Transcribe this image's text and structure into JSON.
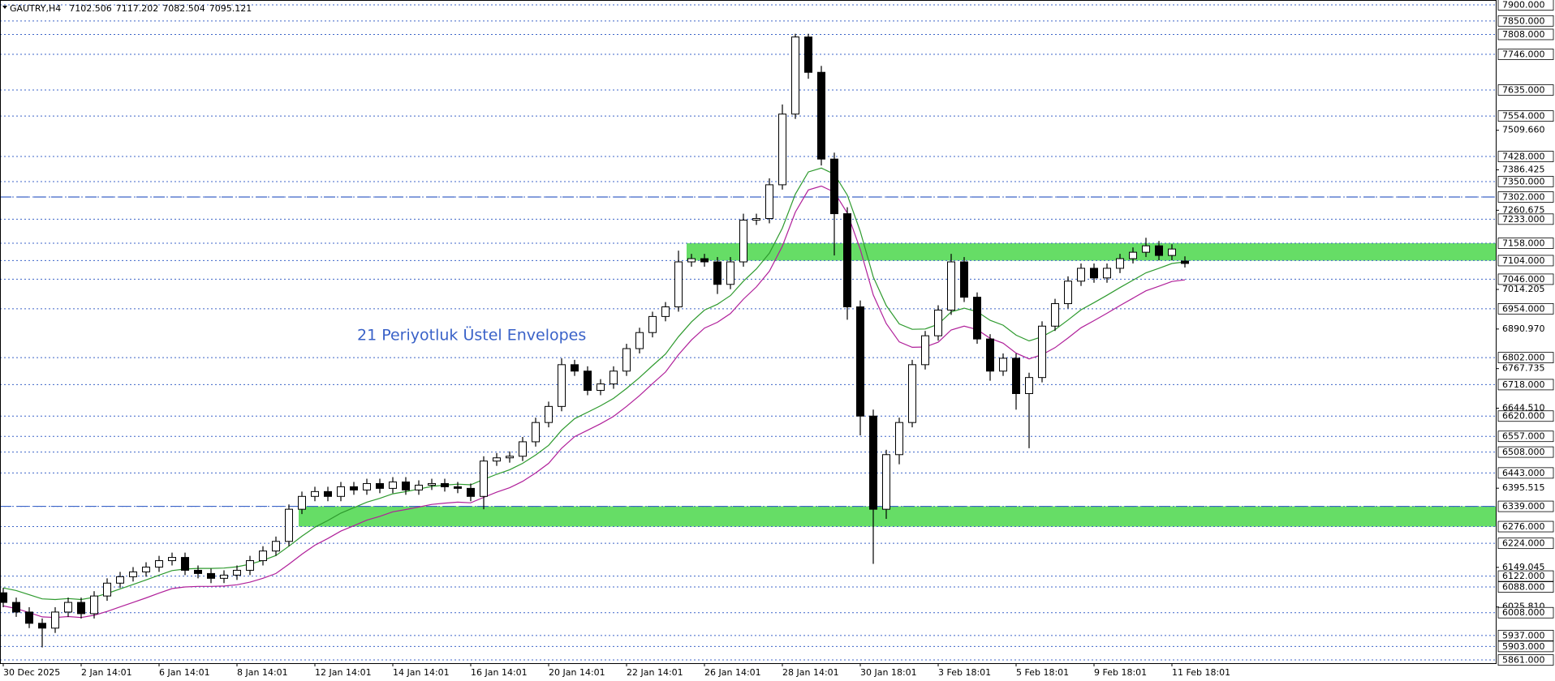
{
  "chart_data": {
    "type": "candlestick",
    "symbol": "GAUTRY,H4",
    "annotation": "21 Periyotluk Üstel Envelopes",
    "categories": [
      "30 Dec 2025",
      null,
      null,
      null,
      null,
      null,
      "2 Jan 14:01",
      null,
      null,
      null,
      null,
      null,
      "6 Jan 14:01",
      null,
      null,
      null,
      null,
      null,
      "8 Jan 14:01",
      null,
      null,
      null,
      null,
      null,
      "12 Jan 14:01",
      null,
      null,
      null,
      null,
      null,
      "14 Jan 14:01",
      null,
      null,
      null,
      null,
      null,
      "16 Jan 14:01",
      null,
      null,
      null,
      null,
      null,
      "20 Jan 14:01",
      null,
      null,
      null,
      null,
      null,
      "22 Jan 14:01",
      null,
      null,
      null,
      null,
      null,
      "26 Jan 14:01",
      null,
      null,
      null,
      null,
      null,
      "28 Jan 14:01",
      null,
      null,
      null,
      null,
      null,
      "30 Jan 18:01",
      null,
      null,
      null,
      null,
      null,
      "3 Feb 18:01",
      null,
      null,
      null,
      null,
      null,
      "5 Feb 18:01",
      null,
      null,
      null,
      null,
      null,
      "9 Feb 18:01",
      null,
      null,
      null,
      null,
      null,
      "11 Feb 18:01",
      null
    ],
    "open": [
      6070,
      6040,
      6010,
      5975,
      5960,
      6010,
      6040,
      6005,
      6060,
      6100,
      6120,
      6135,
      6150,
      6170,
      6180,
      6140,
      6130,
      6115,
      6125,
      6140,
      6170,
      6200,
      6230,
      6330,
      6370,
      6385,
      6370,
      6400,
      6390,
      6410,
      6395,
      6415,
      6390,
      6405,
      6410,
      6400,
      6395,
      6370,
      6480,
      6490,
      6495,
      6540,
      6600,
      6650,
      6780,
      6760,
      6700,
      6720,
      6760,
      6830,
      6880,
      6930,
      6960,
      7100,
      7110,
      7100,
      7030,
      7100,
      7230,
      7235,
      7340,
      7560,
      7800,
      7690,
      7420,
      7250,
      6960,
      6620,
      6330,
      6500,
      6600,
      6780,
      6870,
      6950,
      7100,
      6990,
      6860,
      6760,
      6800,
      6690,
      6740,
      6900,
      6970,
      7040,
      7080,
      7050,
      7080,
      7110,
      7130,
      7150,
      7120,
      7102.506
    ],
    "high": [
      6085,
      6055,
      6025,
      5990,
      6025,
      6055,
      6055,
      6075,
      6115,
      6135,
      6150,
      6165,
      6185,
      6195,
      6195,
      6155,
      6145,
      6140,
      6155,
      6185,
      6215,
      6245,
      6345,
      6385,
      6400,
      6400,
      6415,
      6415,
      6425,
      6425,
      6430,
      6430,
      6420,
      6425,
      6425,
      6415,
      6410,
      6495,
      6505,
      6510,
      6555,
      6615,
      6665,
      6800,
      6795,
      6775,
      6735,
      6775,
      6845,
      6895,
      6945,
      6975,
      7135,
      7125,
      7125,
      7115,
      7115,
      7250,
      7250,
      7360,
      7590,
      7810,
      7810,
      7710,
      7440,
      7270,
      6980,
      6640,
      6515,
      6615,
      6795,
      6885,
      6965,
      7125,
      7115,
      7005,
      6875,
      6815,
      6815,
      6755,
      6915,
      6985,
      7055,
      7095,
      7095,
      7095,
      7125,
      7145,
      7175,
      7165,
      7155,
      7117.202
    ],
    "low": [
      6025,
      5995,
      5960,
      5900,
      5945,
      5995,
      5990,
      5990,
      6045,
      6085,
      6105,
      6120,
      6135,
      6155,
      6125,
      6115,
      6100,
      6100,
      6110,
      6125,
      6155,
      6185,
      6215,
      6315,
      6355,
      6355,
      6355,
      6375,
      6375,
      6380,
      6380,
      6375,
      6375,
      6390,
      6385,
      6380,
      6355,
      6330,
      6465,
      6475,
      6480,
      6525,
      6585,
      6635,
      6745,
      6685,
      6685,
      6705,
      6745,
      6815,
      6865,
      6915,
      6945,
      7085,
      7085,
      7000,
      7015,
      7085,
      7215,
      7220,
      7325,
      7545,
      7670,
      7400,
      7120,
      6920,
      6560,
      6160,
      6300,
      6470,
      6585,
      6765,
      6855,
      6935,
      6975,
      6845,
      6730,
      6745,
      6640,
      6520,
      6725,
      6885,
      6955,
      7025,
      7035,
      7035,
      7065,
      7095,
      7115,
      7105,
      7105,
      7082.504
    ],
    "close": [
      6040,
      6010,
      5975,
      5960,
      6010,
      6040,
      6005,
      6060,
      6100,
      6120,
      6135,
      6150,
      6170,
      6180,
      6140,
      6130,
      6115,
      6125,
      6140,
      6170,
      6200,
      6230,
      6330,
      6370,
      6385,
      6370,
      6400,
      6390,
      6410,
      6395,
      6415,
      6390,
      6405,
      6410,
      6400,
      6395,
      6370,
      6480,
      6490,
      6495,
      6540,
      6600,
      6650,
      6780,
      6760,
      6700,
      6720,
      6760,
      6830,
      6880,
      6930,
      6960,
      7100,
      7110,
      7100,
      7030,
      7100,
      7230,
      7235,
      7340,
      7560,
      7800,
      7690,
      7420,
      7250,
      6960,
      6620,
      6330,
      6500,
      6600,
      6780,
      6870,
      6950,
      7100,
      6990,
      6860,
      6760,
      6800,
      6690,
      6740,
      6900,
      6970,
      7040,
      7080,
      7050,
      7080,
      7110,
      7130,
      7150,
      7120,
      7140,
      7095.121
    ],
    "up_color": "#ffffff",
    "down_color": "#000000",
    "series": [
      {
        "color": "#2e9a2e",
        "values": [
          6085,
          6077,
          6064,
          6051,
          6049,
          6052,
          6049,
          6056,
          6068,
          6082,
          6096,
          6110,
          6125,
          6139,
          6144,
          6146,
          6146,
          6147,
          6151,
          6159,
          6171,
          6186,
          6215,
          6246,
          6274,
          6295,
          6318,
          6335,
          6352,
          6364,
          6378,
          6385,
          6393,
          6401,
          6405,
          6408,
          6406,
          6423,
          6439,
          6453,
          6473,
          6499,
          6529,
          6576,
          6612,
          6632,
          6652,
          6675,
          6706,
          6740,
          6777,
          6813,
          6867,
          6913,
          6950,
          6968,
          6995,
          7040,
          7078,
          7127,
          7205,
          7311,
          7380,
          7392,
          7373,
          7308,
          7195,
          7053,
          6964,
          6907,
          6890,
          6891,
          6906,
          6944,
          6956,
          6945,
          6918,
          6903,
          6872,
          6854,
          6867,
          6889,
          6919,
          6951,
          6973,
          6996,
          7020,
          7043,
          7066,
          7080,
          7095,
          7100
        ]
      },
      {
        "color": "#b0209a",
        "values": [
          6029,
          6021,
          6008,
          5995,
          5993,
          5996,
          5993,
          6000,
          6012,
          6026,
          6040,
          6054,
          6069,
          6083,
          6088,
          6090,
          6090,
          6091,
          6095,
          6103,
          6115,
          6130,
          6159,
          6190,
          6218,
          6239,
          6262,
          6279,
          6296,
          6308,
          6322,
          6329,
          6337,
          6345,
          6349,
          6352,
          6350,
          6367,
          6383,
          6397,
          6417,
          6443,
          6473,
          6520,
          6556,
          6576,
          6596,
          6619,
          6650,
          6684,
          6721,
          6757,
          6811,
          6857,
          6894,
          6912,
          6939,
          6984,
          7022,
          7071,
          7149,
          7255,
          7324,
          7336,
          7317,
          7252,
          7139,
          6997,
          6908,
          6851,
          6834,
          6835,
          6850,
          6888,
          6900,
          6889,
          6862,
          6847,
          6816,
          6798,
          6811,
          6833,
          6863,
          6895,
          6917,
          6940,
          6964,
          6987,
          7010,
          7024,
          7039,
          7044
        ]
      }
    ],
    "ylim": [
      5861,
      7900
    ],
    "yticks": [
      {
        "value": 7509.66,
        "label": "7509.660"
      },
      {
        "value": 7386.425,
        "label": "7386.425"
      },
      {
        "value": 7260.675,
        "label": "7260.675"
      },
      {
        "value": 7014.205,
        "label": "7014.205"
      },
      {
        "value": 6890.97,
        "label": "6890.970"
      },
      {
        "value": 6767.735,
        "label": "6767.735"
      },
      {
        "value": 6644.51,
        "label": "6644.510"
      },
      {
        "value": 6395.515,
        "label": "6395.515"
      },
      {
        "value": 6149.045,
        "label": "6149.045"
      },
      {
        "value": 6025.81,
        "label": "6025.810"
      }
    ],
    "levels": [
      {
        "value": 7900,
        "label": "7900.000"
      },
      {
        "value": 7850,
        "label": "7850.000"
      },
      {
        "value": 7808,
        "label": "7808.000"
      },
      {
        "value": 7746,
        "label": "7746.000"
      },
      {
        "value": 7635,
        "label": "7635.000"
      },
      {
        "value": 7554,
        "label": "7554.000"
      },
      {
        "value": 7428,
        "label": "7428.000"
      },
      {
        "value": 7350,
        "label": "7350.000"
      },
      {
        "value": 7302,
        "label": "7302.000"
      },
      {
        "value": 7233,
        "label": "7233.000"
      },
      {
        "value": 7158,
        "label": "7158.000"
      },
      {
        "value": 7104,
        "label": "7104.000"
      },
      {
        "value": 7046,
        "label": "7046.000"
      },
      {
        "value": 6954,
        "label": "6954.000"
      },
      {
        "value": 6802,
        "label": "6802.000"
      },
      {
        "value": 6718,
        "label": "6718.000"
      },
      {
        "value": 6620,
        "label": "6620.000"
      },
      {
        "value": 6557,
        "label": "6557.000"
      },
      {
        "value": 6508,
        "label": "6508.000"
      },
      {
        "value": 6443,
        "label": "6443.000"
      },
      {
        "value": 6339,
        "label": "6339.000"
      },
      {
        "value": 6276,
        "label": "6276.000"
      },
      {
        "value": 6224,
        "label": "6224.000"
      },
      {
        "value": 6122,
        "label": "6122.000"
      },
      {
        "value": 6088,
        "label": "6088.000"
      },
      {
        "value": 6008,
        "label": "6008.000"
      },
      {
        "value": 5937,
        "label": "5937.000"
      },
      {
        "value": 5903,
        "label": "5903.000"
      },
      {
        "value": 5861,
        "label": "5861.000"
      }
    ],
    "level_color": "#3c64c8",
    "lines": [
      7302,
      6339
    ],
    "zones": [
      {
        "from": 7104,
        "to": 7158,
        "color": "#66dd66"
      },
      {
        "from": 6276,
        "to": 6339,
        "color": "#66dd66"
      }
    ]
  }
}
